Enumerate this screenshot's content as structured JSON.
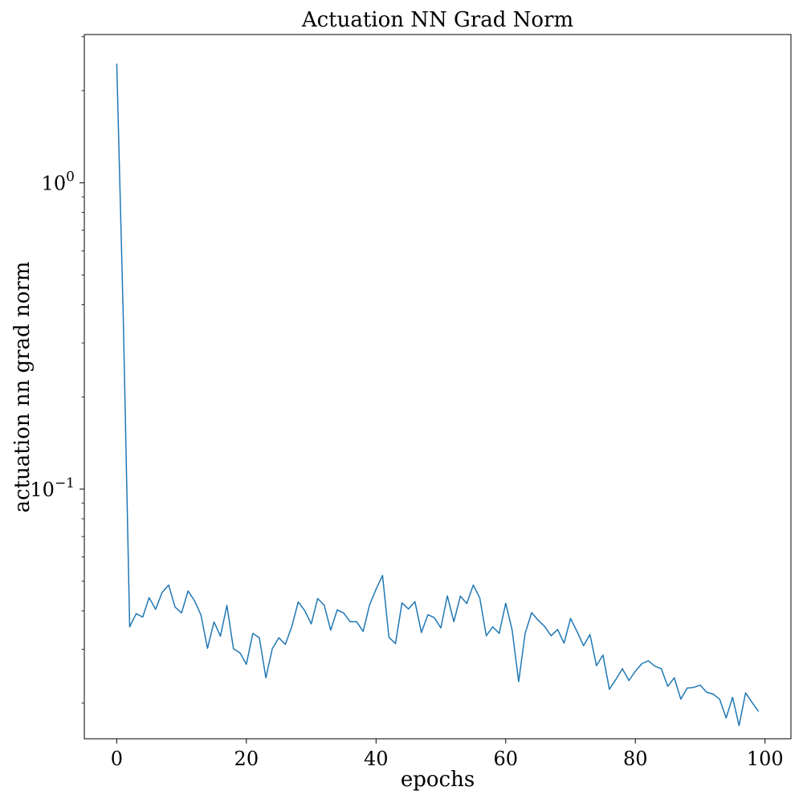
{
  "chart_data": {
    "type": "line",
    "title": "Actuation NN Grad Norm",
    "xlabel": "epochs",
    "ylabel": "actuation nn grad norm",
    "yscale": "log",
    "xlim": [
      -5,
      104
    ],
    "ylim": [
      0.0153,
      3.05
    ],
    "grid": false,
    "legend": "none",
    "xticks": [
      0,
      20,
      40,
      60,
      80,
      100
    ],
    "yticks": [
      {
        "value": 1,
        "base": "10",
        "exp": "0"
      },
      {
        "value": 0.1,
        "base": "10",
        "exp": "−1"
      }
    ],
    "colors": {
      "line": "#1f77b4",
      "axes": "#000000"
    },
    "series": [
      {
        "x": [
          0,
          1,
          2,
          3,
          4,
          5,
          6,
          7,
          8,
          9,
          10,
          11,
          12,
          13,
          14,
          15,
          16,
          17,
          18,
          19,
          20,
          21,
          22,
          23,
          24,
          25,
          26,
          27,
          28,
          29,
          30,
          31,
          32,
          33,
          34,
          35,
          36,
          37,
          38,
          39,
          40,
          41,
          42,
          43,
          44,
          45,
          46,
          47,
          48,
          49,
          50,
          51,
          52,
          53,
          54,
          55,
          56,
          57,
          58,
          59,
          60,
          61,
          62,
          63,
          64,
          65,
          66,
          67,
          68,
          69,
          70,
          71,
          72,
          73,
          74,
          75,
          76,
          77,
          78,
          79,
          80,
          81,
          82,
          83,
          84,
          85,
          86,
          87,
          88,
          89,
          90,
          91,
          92,
          93,
          94,
          95,
          96,
          97,
          98,
          99
        ],
        "values": [
          2.45,
          0.375,
          0.0355,
          0.0392,
          0.0382,
          0.0442,
          0.0405,
          0.046,
          0.0486,
          0.0412,
          0.0394,
          0.0465,
          0.0432,
          0.0388,
          0.0302,
          0.0368,
          0.0331,
          0.0417,
          0.0301,
          0.0292,
          0.0268,
          0.0338,
          0.0327,
          0.0242,
          0.0301,
          0.0327,
          0.0311,
          0.0355,
          0.0428,
          0.0401,
          0.0363,
          0.0439,
          0.0418,
          0.0346,
          0.0403,
          0.0394,
          0.0369,
          0.0369,
          0.0343,
          0.0418,
          0.0471,
          0.0522,
          0.0328,
          0.0313,
          0.0425,
          0.0406,
          0.0429,
          0.034,
          0.0389,
          0.038,
          0.0352,
          0.0448,
          0.0369,
          0.0447,
          0.0423,
          0.0486,
          0.0441,
          0.0332,
          0.0355,
          0.0338,
          0.0424,
          0.0346,
          0.0235,
          0.0338,
          0.0395,
          0.0373,
          0.0356,
          0.0332,
          0.0348,
          0.0314,
          0.0378,
          0.0343,
          0.0308,
          0.0335,
          0.0265,
          0.0287,
          0.0222,
          0.0239,
          0.0259,
          0.0237,
          0.0254,
          0.0269,
          0.0275,
          0.0264,
          0.0259,
          0.0227,
          0.0242,
          0.0206,
          0.0224,
          0.0225,
          0.0229,
          0.0217,
          0.0214,
          0.0206,
          0.0179,
          0.0209,
          0.0169,
          0.0216,
          0.0201,
          0.0188
        ]
      }
    ]
  }
}
